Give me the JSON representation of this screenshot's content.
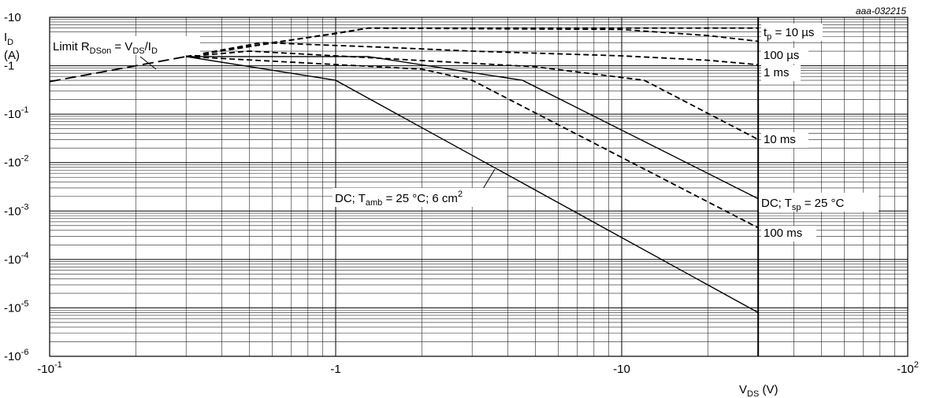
{
  "figure_id": "aaa-032215",
  "chart_data": {
    "type": "line",
    "x_scale": "log",
    "y_scale": "log",
    "x_ticks": [
      {
        "value": -0.1,
        "label": "-10",
        "exp": "-1"
      },
      {
        "value": -1,
        "label": "-1",
        "exp": ""
      },
      {
        "value": -10,
        "label": "-10",
        "exp": ""
      },
      {
        "value": -100,
        "label": "-10",
        "exp": "2"
      }
    ],
    "y_ticks": [
      {
        "value": -10,
        "label": "-10",
        "exp": ""
      },
      {
        "value": -1,
        "label": "-1",
        "exp": ""
      },
      {
        "value": -0.1,
        "label": "-10",
        "exp": "-1"
      },
      {
        "value": -0.01,
        "label": "-10",
        "exp": "-2"
      },
      {
        "value": -0.001,
        "label": "-10",
        "exp": "-3"
      },
      {
        "value": -0.0001,
        "label": "-10",
        "exp": "-4"
      },
      {
        "value": -1e-05,
        "label": "-10",
        "exp": "-5"
      },
      {
        "value": -1e-06,
        "label": "-10",
        "exp": "-6"
      }
    ],
    "xlim": [
      -0.1,
      -100
    ],
    "ylim": [
      -1e-06,
      -10
    ],
    "xlabel": {
      "main": "V",
      "sub": "DS",
      "unit": " (V)"
    },
    "ylabel": {
      "main": "I",
      "sub": "D",
      "unit": "(A)"
    },
    "grid": true,
    "vertical_limit_line": -30,
    "series": [
      {
        "name": "Limit RDSon = VDS/ID",
        "style": "longdash",
        "x": [
          -0.1,
          -0.3
        ],
        "y": [
          -0.47,
          -1.55
        ]
      },
      {
        "name": "tp = 10 µs",
        "style": "dashed",
        "x": [
          -0.3,
          -1.3,
          -10,
          -30
        ],
        "y": [
          -1.55,
          -6.0,
          -6.0,
          -6.0
        ]
      },
      {
        "name": "100 µs",
        "style": "dashed",
        "x": [
          -0.3,
          -0.6,
          -1.0,
          -1.3,
          -10,
          -20,
          -30
        ],
        "y": [
          -1.55,
          -3.0,
          -4.6,
          -6.0,
          -5.6,
          -4.2,
          -3.2
        ]
      },
      {
        "name": "1 ms",
        "style": "dashed",
        "x": [
          -0.3,
          -0.55,
          -1.5,
          -3,
          -10,
          -20,
          -30
        ],
        "y": [
          -1.55,
          -3.0,
          -2.4,
          -2.0,
          -1.6,
          -1.3,
          -1.05
        ]
      },
      {
        "name": "10 ms",
        "style": "dashed",
        "x": [
          -0.3,
          -0.5,
          -1.0,
          -5,
          -12,
          -30
        ],
        "y": [
          -1.55,
          -2.0,
          -1.6,
          -0.95,
          -0.5,
          -0.03
        ]
      },
      {
        "name": "100 ms",
        "style": "dashed",
        "x": [
          -0.3,
          -2.0,
          -3.0,
          -30
        ],
        "y": [
          -1.55,
          -0.85,
          -0.5,
          -0.00045
        ]
      },
      {
        "name": "DC; Tsp = 25 °C",
        "style": "solid",
        "x": [
          -0.3,
          -1.3,
          -4.5,
          -30
        ],
        "y": [
          -1.55,
          -1.55,
          -0.5,
          -0.0018
        ]
      },
      {
        "name": "DC; Tamb = 25 °C; 6 cm2",
        "style": "solid",
        "x": [
          -0.3,
          -1.0,
          -30
        ],
        "y": [
          -1.55,
          -0.5,
          -8e-06
        ]
      }
    ],
    "annotations": [
      {
        "id": "limit",
        "parts": [
          [
            "Limit R",
            ""
          ],
          [
            "DSon",
            "sub"
          ],
          [
            " = V",
            ""
          ],
          [
            "DS",
            "sub"
          ],
          [
            "/I",
            ""
          ],
          [
            "D",
            "sub"
          ]
        ]
      },
      {
        "id": "tp10",
        "parts": [
          [
            "t",
            ""
          ],
          [
            "p",
            "sub"
          ],
          [
            " = 10 µs",
            ""
          ]
        ]
      },
      {
        "id": "us100",
        "parts": [
          [
            "100 µs",
            ""
          ]
        ]
      },
      {
        "id": "ms1",
        "parts": [
          [
            "1 ms",
            ""
          ]
        ]
      },
      {
        "id": "ms10",
        "parts": [
          [
            "10 ms",
            ""
          ]
        ]
      },
      {
        "id": "dcsp",
        "parts": [
          [
            "DC; T",
            ""
          ],
          [
            "sp",
            "sub"
          ],
          [
            " = 25 °C",
            ""
          ]
        ]
      },
      {
        "id": "ms100",
        "parts": [
          [
            "100 ms",
            ""
          ]
        ]
      },
      {
        "id": "dcamb",
        "parts": [
          [
            "DC; T",
            ""
          ],
          [
            "amb",
            "sub"
          ],
          [
            " = 25 °C; 6 cm",
            ""
          ],
          [
            "2",
            "sup"
          ]
        ]
      }
    ]
  }
}
